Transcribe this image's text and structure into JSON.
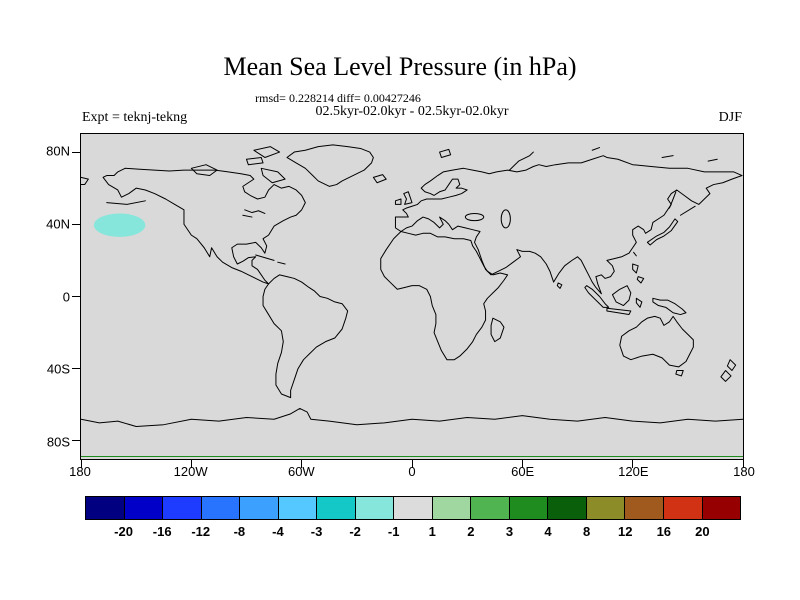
{
  "header": {
    "title": "Mean Sea Level Pressure (in hPa)",
    "stats_line": "rmsd= 0.228214 diff= 0.00427246",
    "case_line": "02.5kyr-02.0kyr - 02.5kyr-02.0kyr",
    "expt_label": "Expt = teknj-tekng",
    "season_label": "DJF"
  },
  "chart_data": {
    "type": "filled_contour_map",
    "title": "Mean Sea Level Pressure (in hPa)",
    "units": "hPa",
    "season": "DJF",
    "experiment": "teknj-tekng",
    "comparison": "02.5kyr-02.0kyr - 02.5kyr-02.0kyr",
    "rmsd": 0.228214,
    "diff": 0.00427246,
    "projection": "equirectangular",
    "lon_range": [
      -180,
      180
    ],
    "lat_range": [
      -90,
      90
    ],
    "x_ticks": [
      "180",
      "120W",
      "60W",
      "0",
      "60E",
      "120E",
      "180"
    ],
    "x_tick_lons": [
      -180,
      -120,
      -60,
      0,
      60,
      120,
      180
    ],
    "y_ticks": [
      "80N",
      "40N",
      "0",
      "40S",
      "80S"
    ],
    "y_tick_lats": [
      80,
      40,
      0,
      -40,
      -80
    ],
    "background_color": "#d9d9d9",
    "coastline_color": "#000000",
    "edge_contour_color": "#1e8a1e",
    "colorbar": {
      "levels": [
        "-20",
        "-16",
        "-12",
        "-8",
        "-4",
        "-3",
        "-2",
        "-1",
        "1",
        "2",
        "3",
        "4",
        "8",
        "12",
        "16",
        "20"
      ],
      "colors": [
        "#000080",
        "#0000c8",
        "#1e3cff",
        "#2874ff",
        "#3ca0ff",
        "#55c8ff",
        "#14c8c8",
        "#87e6dc",
        "#dcdcdc",
        "#a0d6a0",
        "#50b450",
        "#1e8c1e",
        "#0a5f0a",
        "#8c8c28",
        "#a05a1e",
        "#d23214",
        "#960000"
      ]
    },
    "anomaly_regions": [
      {
        "description": "negative MSLP anomaly (-2 to -1 hPa) over the North Pacific",
        "value_range": [
          -2,
          -1
        ],
        "center_lon": -159,
        "center_lat": 39.5,
        "rx_deg": 14,
        "ry_deg": 6.5,
        "color": "#87e6dc"
      }
    ]
  }
}
